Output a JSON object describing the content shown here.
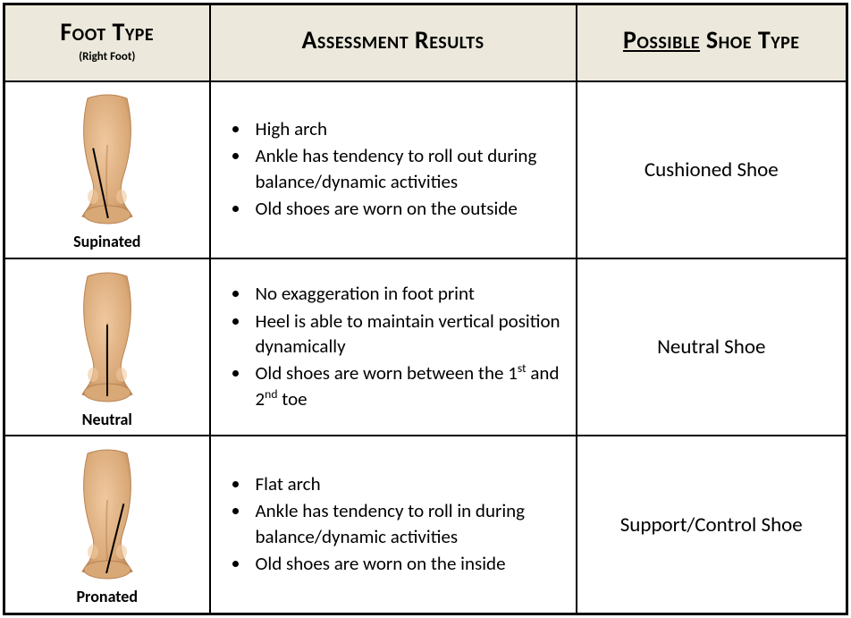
{
  "headers": {
    "foot_type": "Foot Type",
    "foot_type_sub": "(Right Foot)",
    "assessment": "Assessment Results",
    "shoe_type_prefix": "Possible",
    "shoe_type_suffix": " Shoe Type"
  },
  "rows": [
    {
      "label": "Supinated",
      "line_angle": -12,
      "bullets": [
        "High arch",
        "Ankle has tendency to roll out during balance/dynamic activities",
        "Old shoes are worn on the outside"
      ],
      "shoe": "Cushioned Shoe"
    },
    {
      "label": "Neutral",
      "line_angle": 0,
      "bullets": [
        "No exaggeration in foot print",
        "Heel is able to maintain vertical position dynamically",
        "Old shoes are worn between the 1<sup>st</sup> and 2<sup>nd</sup> toe"
      ],
      "shoe": "Neutral Shoe"
    },
    {
      "label": "Pronated",
      "line_angle": 14,
      "bullets": [
        "Flat arch",
        "Ankle has tendency to roll in during balance/dynamic activities",
        "Old shoes are worn on the inside"
      ],
      "shoe": "Support/Control Shoe"
    }
  ],
  "style": {
    "header_bg": "#ece9dc",
    "border_color": "#000000",
    "cell_bg": "#ffffff",
    "header_fontsize": 28,
    "header_sub_fontsize": 13,
    "bullet_fontsize": 21,
    "shoe_fontsize": 23,
    "label_fontsize": 18,
    "foot_svg": {
      "width": 120,
      "height": 150,
      "skin_fill": "#d9a877",
      "skin_shade": "#b98454",
      "skin_highlight": "#f0c9a0",
      "line_color": "#000000",
      "line_width": 2
    }
  }
}
